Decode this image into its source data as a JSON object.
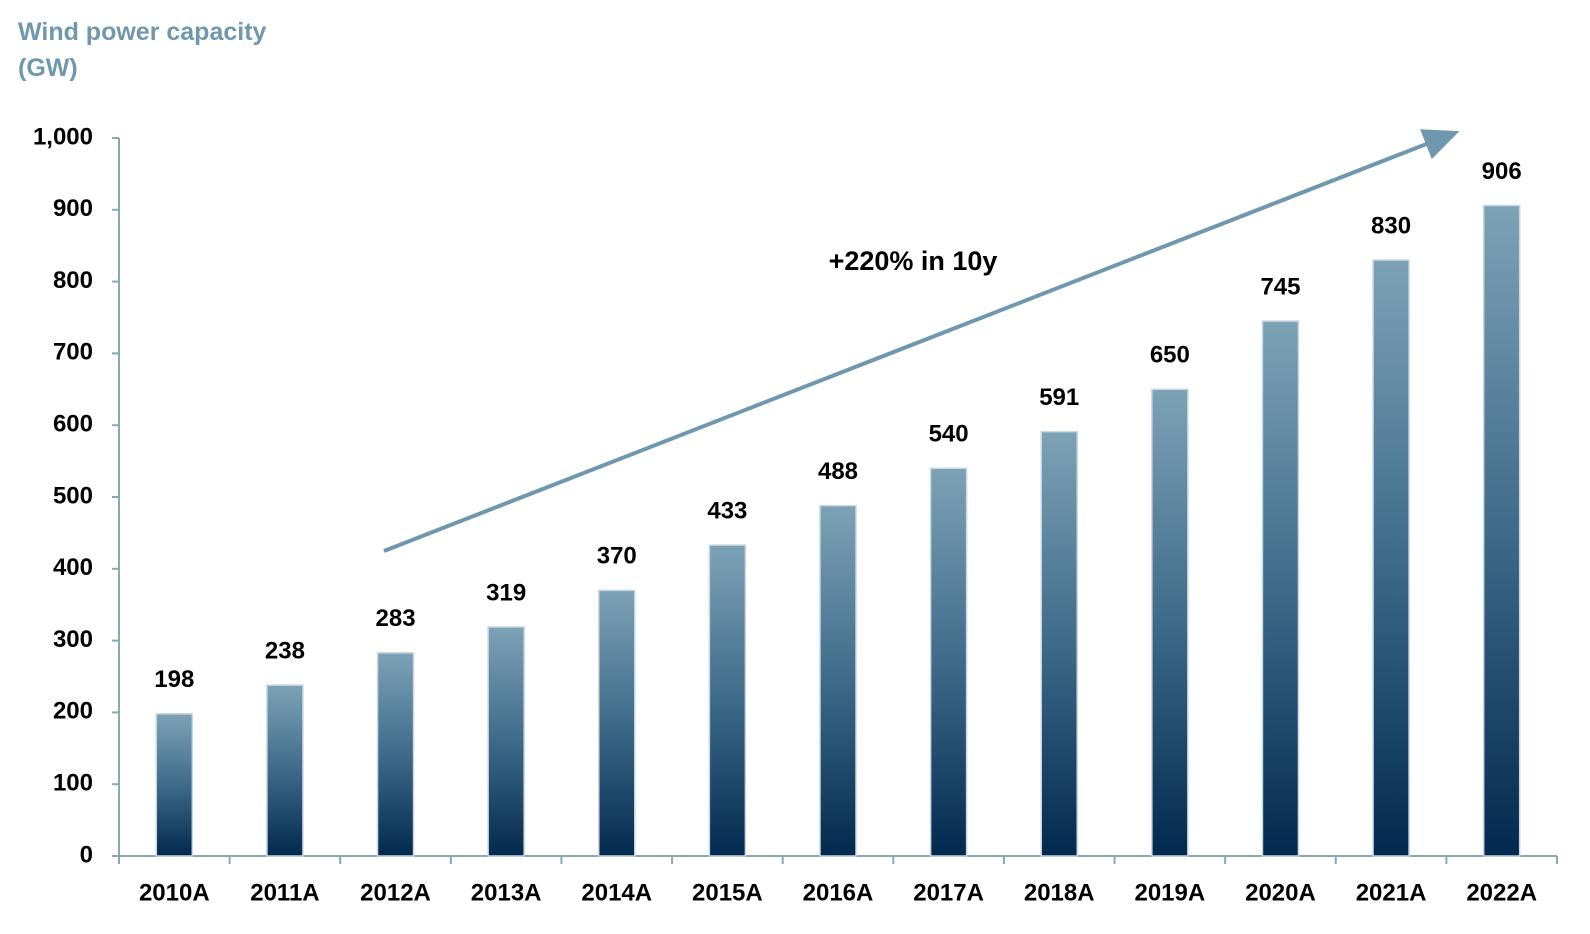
{
  "chart_data": {
    "type": "bar",
    "y_label": "Wind power capacity (GW)",
    "annotation": "+220% in 10y",
    "categories": [
      "2010A",
      "2011A",
      "2012A",
      "2013A",
      "2014A",
      "2015A",
      "2016A",
      "2017A",
      "2018A",
      "2019A",
      "2020A",
      "2021A",
      "2022A"
    ],
    "values": [
      198,
      238,
      283,
      319,
      370,
      433,
      488,
      540,
      591,
      650,
      745,
      830,
      906
    ],
    "color": "#3e6b8a",
    "ylim": [
      0,
      1000
    ],
    "yticks": [
      0,
      100,
      200,
      300,
      400,
      500,
      600,
      700,
      800,
      900,
      {
        "value": 1000,
        "label": "1,000"
      }
    ],
    "grid": false
  }
}
